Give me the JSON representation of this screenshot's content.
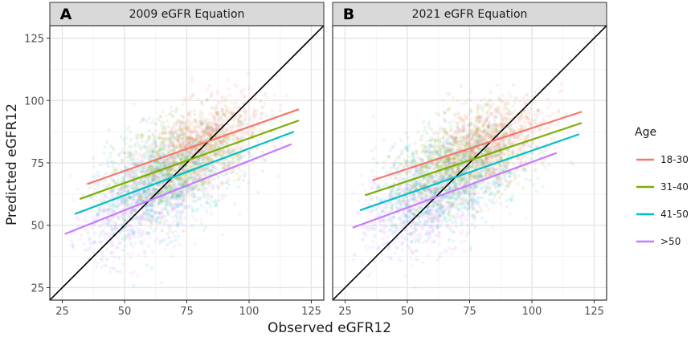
{
  "chart_data": {
    "type": "scatter",
    "xlabel": "Observed eGFR12",
    "ylabel": "Predicted eGFR12",
    "x_ticks": [
      25,
      50,
      75,
      100,
      125
    ],
    "y_ticks": [
      25,
      50,
      75,
      100,
      125
    ],
    "xlim": [
      20,
      130
    ],
    "ylim": [
      20,
      130
    ],
    "grid": true,
    "reference_line": "y = x",
    "legend": {
      "title": "Age",
      "placement": "right",
      "entries": [
        {
          "label": "18-30",
          "color": "#F8766D"
        },
        {
          "label": "31-40",
          "color": "#7CAE00"
        },
        {
          "label": "41-50",
          "color": "#00BFC4"
        },
        {
          "label": ">50",
          "color": "#C77CFF"
        }
      ]
    },
    "panels": [
      {
        "letter": "A",
        "strip": "2009 eGFR Equation",
        "fit_lines": [
          {
            "group": "18-30",
            "x": [
              35,
              120
            ],
            "y": [
              66.5,
              96.5
            ]
          },
          {
            "group": "31-40",
            "x": [
              32,
              120
            ],
            "y": [
              60.5,
              92
            ]
          },
          {
            "group": "41-50",
            "x": [
              30,
              118
            ],
            "y": [
              54.5,
              87.5
            ]
          },
          {
            "group": ">50",
            "x": [
              26,
              117
            ],
            "y": [
              46.5,
              82.5
            ]
          }
        ]
      },
      {
        "letter": "B",
        "strip": "2021 eGFR Equation",
        "fit_lines": [
          {
            "group": "18-30",
            "x": [
              36,
              120
            ],
            "y": [
              68,
              95.5
            ]
          },
          {
            "group": "31-40",
            "x": [
              33,
              120
            ],
            "y": [
              62,
              91
            ]
          },
          {
            "group": "41-50",
            "x": [
              31,
              119
            ],
            "y": [
              56,
              86.5
            ]
          },
          {
            "group": ">50",
            "x": [
              28,
              110
            ],
            "y": [
              49,
              79
            ]
          }
        ]
      }
    ],
    "scatter_clouds": [
      {
        "group": "18-30",
        "x_range": [
          50,
          120
        ],
        "center": [
          82,
          85
        ],
        "spread": [
          12,
          8
        ]
      },
      {
        "group": "31-40",
        "x_range": [
          40,
          118
        ],
        "center": [
          72,
          75
        ],
        "spread": [
          14,
          9
        ]
      },
      {
        "group": "41-50",
        "x_range": [
          35,
          118
        ],
        "center": [
          66,
          68
        ],
        "spread": [
          15,
          10
        ]
      },
      {
        "group": ">50",
        "x_range": [
          28,
          115
        ],
        "center": [
          58,
          57
        ],
        "spread": [
          14,
          10
        ]
      }
    ]
  }
}
